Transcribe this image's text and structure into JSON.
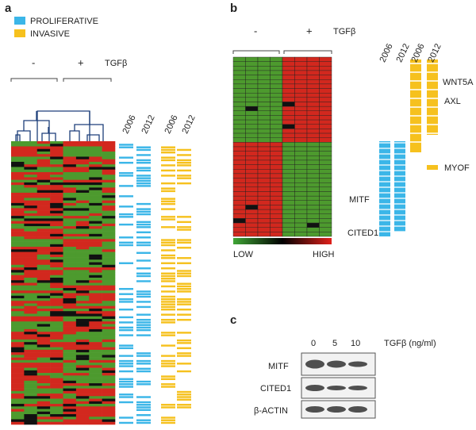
{
  "panel_a": {
    "label": "a",
    "legend": [
      "PROLIFERATIVE",
      "INVASIVE"
    ],
    "minus": "-",
    "plus": "+",
    "treatment": "TGFβ",
    "years": [
      "2006",
      "2012",
      "2006",
      "2012"
    ]
  },
  "panel_b": {
    "label": "b",
    "minus": "-",
    "plus": "+",
    "treatment": "TGFβ",
    "years": [
      "2006",
      "2012",
      "2006",
      "2012"
    ],
    "genes": [
      "WNT5A",
      "AXL",
      "MYOF",
      "MITF",
      "CITED1"
    ],
    "scale": [
      "LOW",
      "HIGH"
    ]
  },
  "panel_c": {
    "label": "c",
    "doses": [
      "0",
      "5",
      "10"
    ],
    "dose_label": "TGFβ (ng/ml)",
    "rows": [
      "MITF",
      "CITED1",
      "β-ACTIN"
    ]
  }
}
